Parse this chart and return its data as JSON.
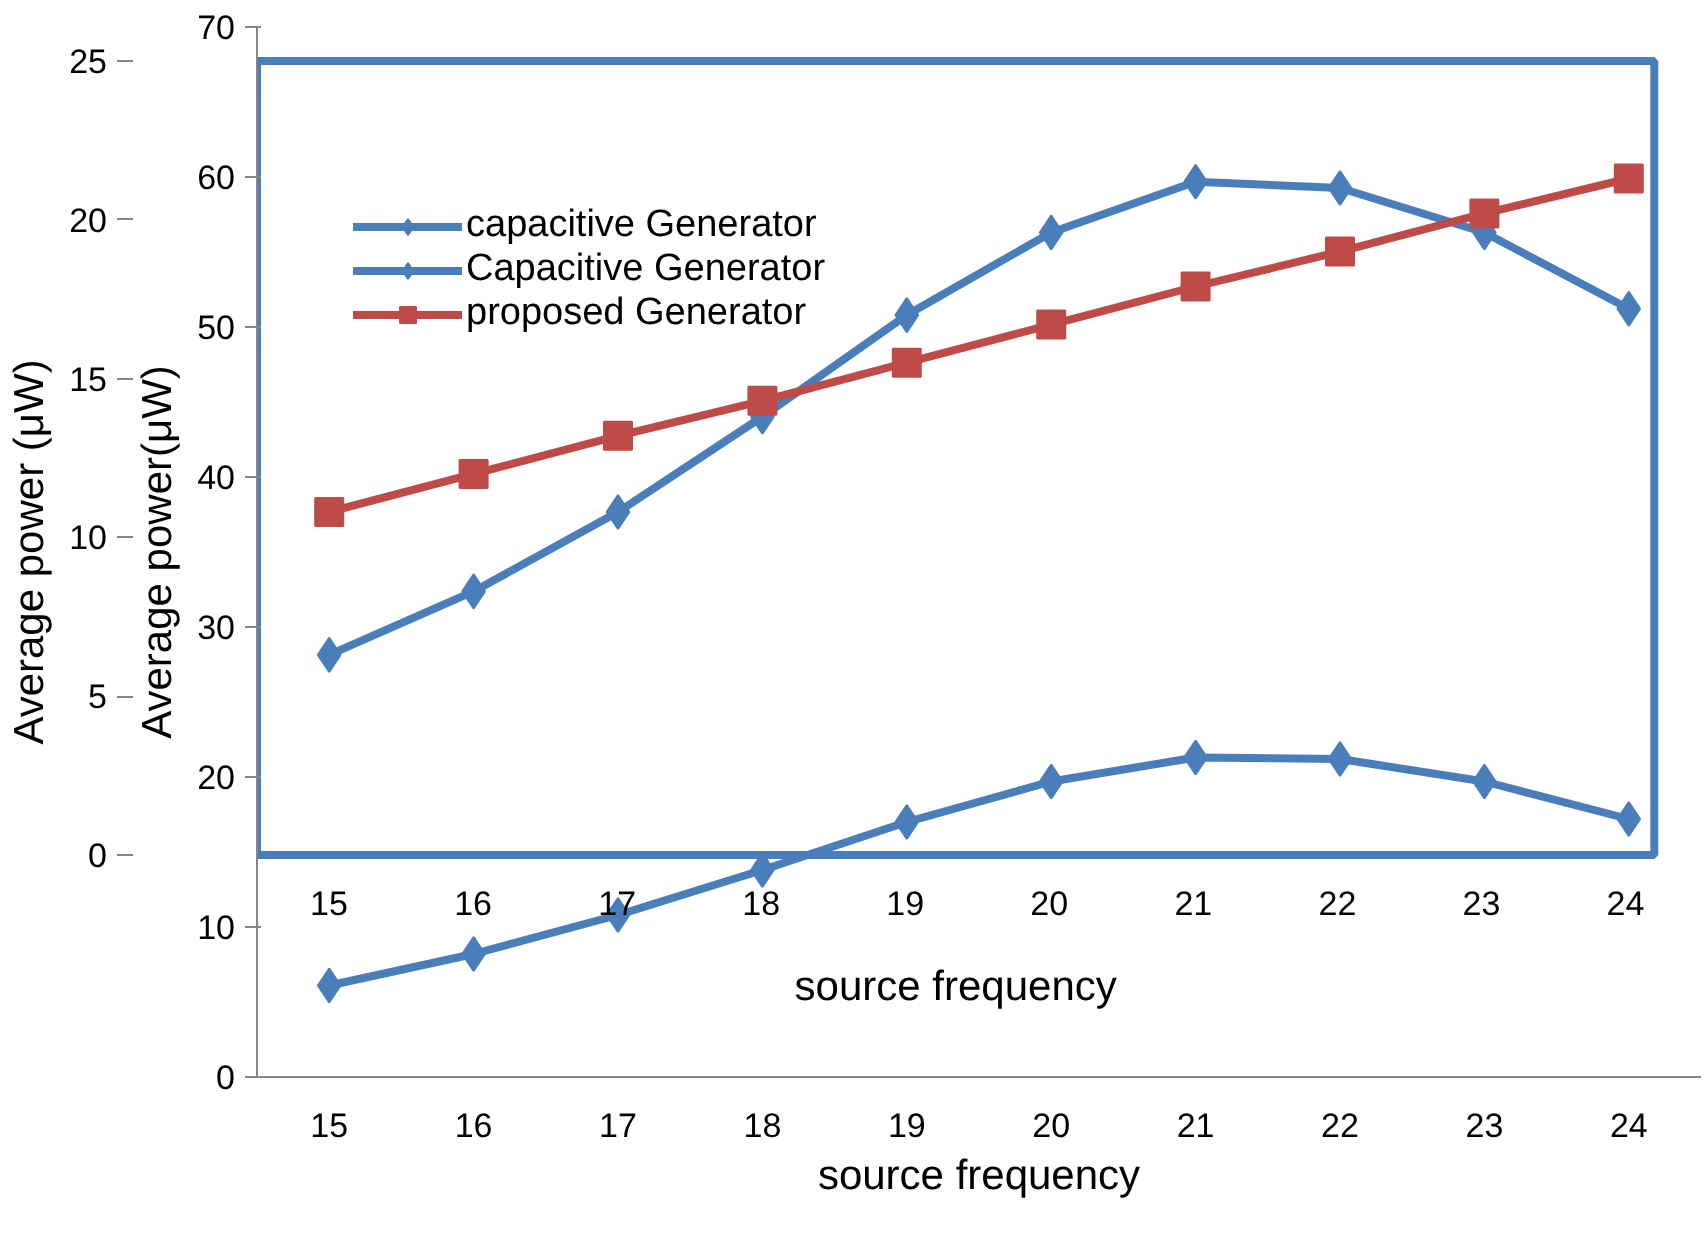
{
  "chart_data": {
    "type": "line",
    "x": [
      15,
      16,
      17,
      18,
      19,
      20,
      21,
      22,
      23,
      24
    ],
    "xlim": [
      14.5,
      24.5
    ],
    "xticks": [
      15,
      16,
      17,
      18,
      19,
      20,
      21,
      22,
      23,
      24
    ],
    "x2lim": [
      14.5,
      24.2
    ],
    "x2ticks": [
      15,
      16,
      17,
      18,
      19,
      20,
      21,
      22,
      23,
      24
    ],
    "ylim": [
      0,
      70
    ],
    "yticks": [
      0,
      10,
      20,
      30,
      40,
      50,
      60,
      70
    ],
    "y2lim": [
      0,
      25
    ],
    "y2ticks": [
      0,
      5,
      10,
      15,
      20,
      25
    ],
    "xlabel": "source frequency",
    "x2label": "source frequency",
    "ylabel": "Average power(μW)",
    "y2label": "Average power (μW)",
    "legend": "top left",
    "line_style": "solid",
    "series": [
      {
        "name": "capacitive Generator",
        "color": "#4a7ebb",
        "marker": "diamond",
        "values": [
          6.1,
          8.2,
          10.8,
          13.8,
          17.0,
          19.7,
          21.3,
          21.2,
          19.7,
          17.2
        ]
      },
      {
        "name": "Capacitive Generator",
        "color": "#4a7ebb",
        "marker": "diamond",
        "axis": "y2",
        "values": [
          6.3,
          8.3,
          10.8,
          13.8,
          17.0,
          19.6,
          21.2,
          21.0,
          19.6,
          17.2
        ]
      },
      {
        "name": "proposed Generator",
        "color": "#be4b48",
        "marker": "square",
        "axis": "y2",
        "values": [
          10.8,
          12.0,
          13.2,
          14.3,
          15.5,
          16.7,
          17.9,
          19.0,
          20.2,
          21.3
        ]
      }
    ]
  }
}
